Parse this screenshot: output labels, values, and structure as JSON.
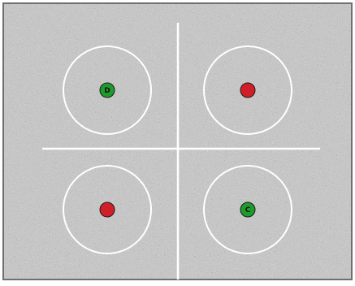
{
  "stimulus": {
    "background_color": "#9a9a9a",
    "divider_color": "#ffffff",
    "ring_color": "#ffffff",
    "quadrants": [
      {
        "name": "top-left",
        "dot_color": "#1e9b2c",
        "dot_label": "D"
      },
      {
        "name": "top-right",
        "dot_color": "#d11f2a",
        "dot_label": ""
      },
      {
        "name": "bottom-left",
        "dot_color": "#d11f2a",
        "dot_label": ""
      },
      {
        "name": "bottom-right",
        "dot_color": "#1e9b2c",
        "dot_label": "C"
      }
    ]
  }
}
